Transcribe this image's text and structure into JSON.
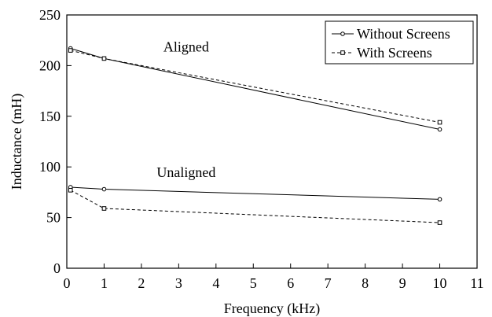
{
  "chart_data": {
    "type": "line",
    "xlabel": "Frequency (kHz)",
    "ylabel": "Inductance (mH)",
    "xlim": [
      0,
      11
    ],
    "ylim": [
      0,
      250
    ],
    "xticks": [
      0,
      1,
      2,
      3,
      4,
      5,
      6,
      7,
      8,
      9,
      10,
      11
    ],
    "yticks": [
      0,
      50,
      100,
      150,
      200,
      250
    ],
    "grid": false,
    "legend_position": "top-right",
    "annotations": [
      {
        "text": "Aligned",
        "x": 3.2,
        "y": 214
      },
      {
        "text": "Unaligned",
        "x": 3.2,
        "y": 90
      }
    ],
    "series": [
      {
        "name": "Without Screens",
        "style": "solid",
        "marker": "circle",
        "group": "Aligned",
        "x": [
          0.1,
          1,
          10
        ],
        "y": [
          217,
          207,
          137
        ]
      },
      {
        "name": "With Screens",
        "style": "dashed",
        "marker": "square",
        "group": "Aligned",
        "x": [
          0.1,
          1,
          10
        ],
        "y": [
          215,
          207,
          144
        ]
      },
      {
        "name": "Without Screens",
        "style": "solid",
        "marker": "circle",
        "group": "Unaligned",
        "x": [
          0.1,
          1,
          10
        ],
        "y": [
          80,
          78,
          68
        ]
      },
      {
        "name": "With Screens",
        "style": "dashed",
        "marker": "square",
        "group": "Unaligned",
        "x": [
          0.1,
          1,
          10
        ],
        "y": [
          77,
          59,
          45
        ]
      }
    ],
    "legend": [
      {
        "name": "Without Screens",
        "style": "solid",
        "marker": "circle"
      },
      {
        "name": "With Screens",
        "style": "dashed",
        "marker": "square"
      }
    ]
  }
}
